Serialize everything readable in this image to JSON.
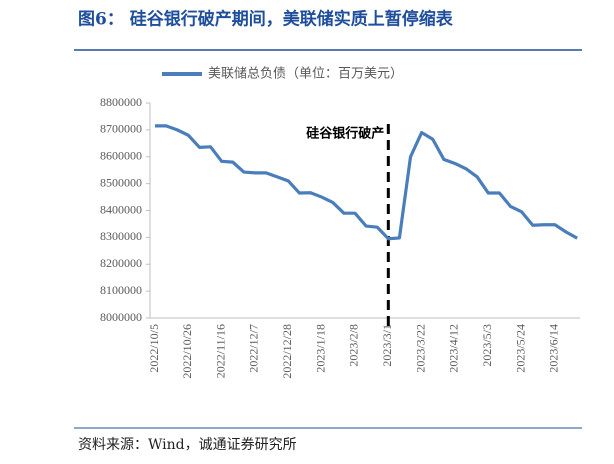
{
  "header": {
    "title": "图6：  硅谷银行破产期间，美联储实质上暂停缩表"
  },
  "chart_data": {
    "type": "line",
    "categories": [
      "2022/10/5",
      null,
      null,
      "2022/10/26",
      null,
      null,
      "2022/11/16",
      null,
      null,
      "2022/12/7",
      null,
      null,
      "2022/12/28",
      null,
      null,
      "2023/1/18",
      null,
      null,
      "2023/2/8",
      null,
      null,
      "2023/3/1",
      null,
      null,
      "2023/3/22",
      null,
      null,
      "2023/4/12",
      null,
      null,
      "2023/5/3",
      null,
      null,
      "2023/5/24",
      null,
      null,
      "2023/6/14",
      null,
      null
    ],
    "series": [
      {
        "name": "美联储总负债（单位：百万美元）",
        "color": "#4a7ebb",
        "values": [
          8715000,
          8715000,
          8700000,
          8680000,
          8635000,
          8637000,
          8583000,
          8580000,
          8543000,
          8540000,
          8540000,
          8525000,
          8510000,
          8465000,
          8466000,
          8450000,
          8430000,
          8390000,
          8390000,
          8342000,
          8338000,
          8295000,
          8298000,
          8600000,
          8690000,
          8665000,
          8590000,
          8575000,
          8555000,
          8525000,
          8465000,
          8465000,
          8415000,
          8395000,
          8345000,
          8347000,
          8347000,
          8320000,
          8297000
        ]
      }
    ],
    "ylim": [
      8000000,
      8800000
    ],
    "yticks": [
      8000000,
      8100000,
      8200000,
      8300000,
      8400000,
      8500000,
      8600000,
      8700000,
      8800000
    ],
    "annotation": {
      "text": "硅谷银行破产",
      "category": "2023/3/1"
    },
    "legend": "top"
  },
  "footer": {
    "source": "资料来源：Wind，诚通证券研究所"
  }
}
